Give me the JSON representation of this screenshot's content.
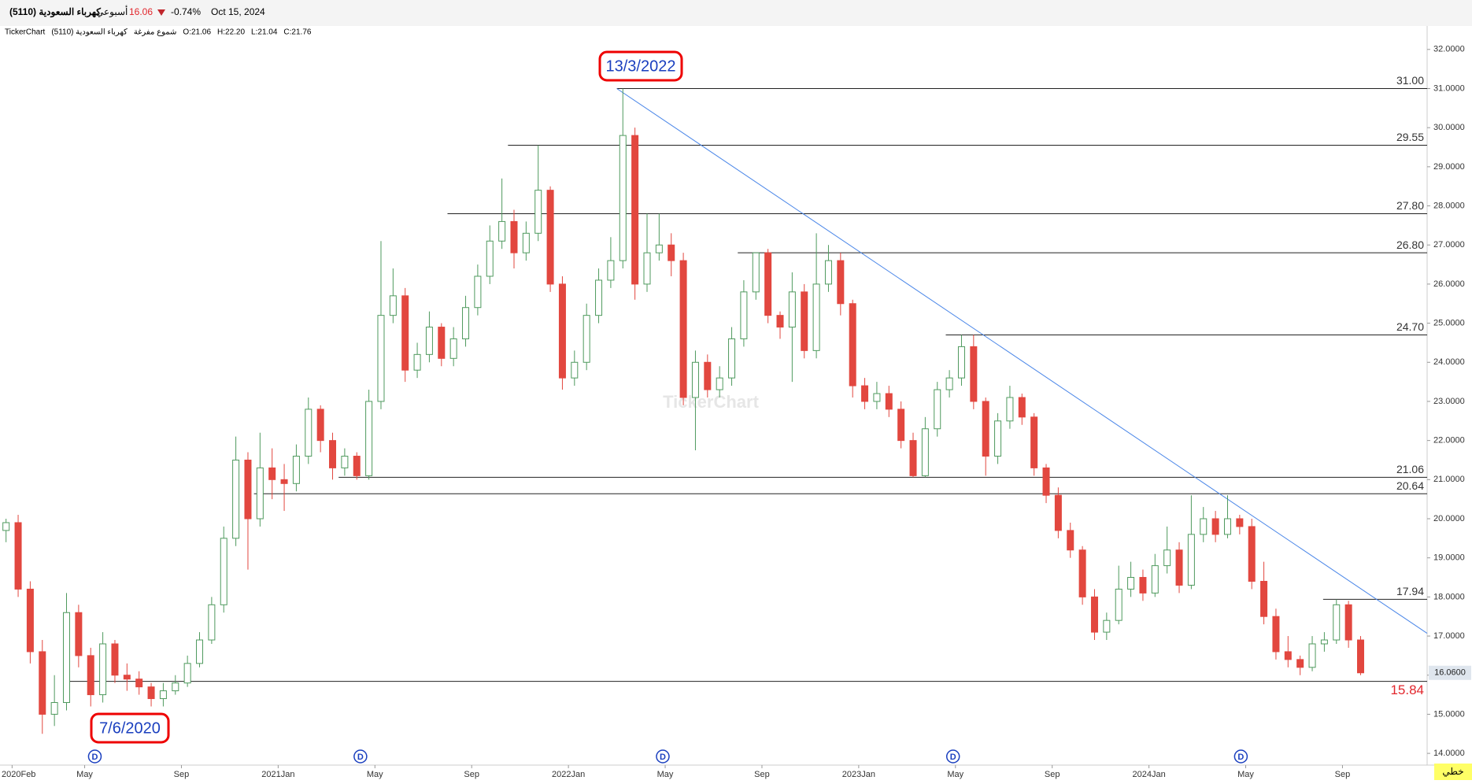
{
  "header": {
    "symbol": "كهرباء السعودية (5110)",
    "period": "أسبوعي",
    "price": "16.06",
    "change": "-0.74%",
    "date": "Oct 15, 2024",
    "info": [
      "TickerChart",
      "كهرباء السعودية (5110)",
      "شموع مفرغة",
      "O:21.06",
      "H:22.20",
      "L:21.04",
      "C:21.76"
    ],
    "watermark": "TickerChart",
    "chart_style": "خطي"
  },
  "chart_data": {
    "type": "candlestick",
    "xlim": [
      0.5,
      59.5
    ],
    "ylim": [
      13.7,
      32.6
    ],
    "xticks": [
      {
        "value": 1,
        "label": "2020Feb"
      },
      {
        "value": 4,
        "label": "May"
      },
      {
        "value": 8,
        "label": "Sep"
      },
      {
        "value": 12,
        "label": "2021Jan"
      },
      {
        "value": 16,
        "label": "May"
      },
      {
        "value": 20,
        "label": "Sep"
      },
      {
        "value": 24,
        "label": "2022Jan"
      },
      {
        "value": 28,
        "label": "May"
      },
      {
        "value": 32,
        "label": "Sep"
      },
      {
        "value": 36,
        "label": "2023Jan"
      },
      {
        "value": 40,
        "label": "May"
      },
      {
        "value": 44,
        "label": "Sep"
      },
      {
        "value": 48,
        "label": "2024Jan"
      },
      {
        "value": 52,
        "label": "May"
      },
      {
        "value": 56,
        "label": "Sep"
      }
    ],
    "yticks": [
      {
        "value": 14,
        "label": "14.0000"
      },
      {
        "value": 15,
        "label": "15.0000"
      },
      {
        "value": 16,
        "label": "16.0000"
      },
      {
        "value": 17,
        "label": "17.0000"
      },
      {
        "value": 18,
        "label": "18.0000"
      },
      {
        "value": 19,
        "label": "19.0000"
      },
      {
        "value": 20,
        "label": "20.0000"
      },
      {
        "value": 21,
        "label": "21.0000"
      },
      {
        "value": 22,
        "label": "22.0000"
      },
      {
        "value": 23,
        "label": "23.0000"
      },
      {
        "value": 24,
        "label": "24.0000"
      },
      {
        "value": 25,
        "label": "25.0000"
      },
      {
        "value": 26,
        "label": "26.0000"
      },
      {
        "value": 27,
        "label": "27.0000"
      },
      {
        "value": 28,
        "label": "28.0000"
      },
      {
        "value": 29,
        "label": "29.0000"
      },
      {
        "value": 30,
        "label": "30.0000"
      },
      {
        "value": 31,
        "label": "31.0000"
      },
      {
        "value": 32,
        "label": "32.0000"
      }
    ],
    "up_color": "#4f9a5e",
    "down_color": "#e2473f",
    "x": [
      0.75,
      1.25,
      1.75,
      2.25,
      2.75,
      3.25,
      3.75,
      4.25,
      4.75,
      5.25,
      5.75,
      6.25,
      6.75,
      7.25,
      7.75,
      8.25,
      8.75,
      9.25,
      9.75,
      10.25,
      10.75,
      11.25,
      11.75,
      12.25,
      12.75,
      13.25,
      13.75,
      14.25,
      14.75,
      15.25,
      15.75,
      16.25,
      16.75,
      17.25,
      17.75,
      18.25,
      18.75,
      19.25,
      19.75,
      20.25,
      20.75,
      21.25,
      21.75,
      22.25,
      22.75,
      23.25,
      23.75,
      24.25,
      24.75,
      25.25,
      25.75,
      26.25,
      26.75,
      27.25,
      27.75,
      28.25,
      28.75,
      29.25,
      29.75,
      30.25,
      30.75,
      31.25,
      31.75,
      32.25,
      32.75,
      33.25,
      33.75,
      34.25,
      34.75,
      35.25,
      35.75,
      36.25,
      36.75,
      37.25,
      37.75,
      38.25,
      38.75,
      39.25,
      39.75,
      40.25,
      40.75,
      41.25,
      41.75,
      42.25,
      42.75,
      43.25,
      43.75,
      44.25,
      44.75,
      45.25,
      45.75,
      46.25,
      46.75,
      47.25,
      47.75,
      48.25,
      48.75,
      49.25,
      49.75,
      50.25,
      50.75,
      51.25,
      51.75,
      52.25,
      52.75,
      53.25,
      53.75,
      54.25,
      54.75,
      55.25,
      55.75,
      56.25,
      56.75
    ],
    "ohlc": [
      [
        19.7,
        20.0,
        19.4,
        19.9
      ],
      [
        19.9,
        20.1,
        18.0,
        18.2
      ],
      [
        18.2,
        18.4,
        16.3,
        16.6
      ],
      [
        16.6,
        16.9,
        14.5,
        15.0
      ],
      [
        15.0,
        16.0,
        14.7,
        15.3
      ],
      [
        15.3,
        18.1,
        15.1,
        17.6
      ],
      [
        17.6,
        17.8,
        16.2,
        16.5
      ],
      [
        16.5,
        16.7,
        15.2,
        15.5
      ],
      [
        15.5,
        17.1,
        15.3,
        16.8
      ],
      [
        16.8,
        16.9,
        15.8,
        16.0
      ],
      [
        16.0,
        16.3,
        15.6,
        15.9
      ],
      [
        15.9,
        16.1,
        15.5,
        15.7
      ],
      [
        15.7,
        15.8,
        15.2,
        15.4
      ],
      [
        15.4,
        15.8,
        15.2,
        15.6
      ],
      [
        15.6,
        16.0,
        15.5,
        15.8
      ],
      [
        15.8,
        16.5,
        15.7,
        16.3
      ],
      [
        16.3,
        17.1,
        16.2,
        16.9
      ],
      [
        16.9,
        18.0,
        16.8,
        17.8
      ],
      [
        17.8,
        19.8,
        17.6,
        19.5
      ],
      [
        19.5,
        22.1,
        19.3,
        21.5
      ],
      [
        21.5,
        21.7,
        18.7,
        20.0
      ],
      [
        20.0,
        22.2,
        19.8,
        21.3
      ],
      [
        21.3,
        21.8,
        20.5,
        21.0
      ],
      [
        21.0,
        21.4,
        20.2,
        20.9
      ],
      [
        20.9,
        21.9,
        20.7,
        21.6
      ],
      [
        21.6,
        23.1,
        21.4,
        22.8
      ],
      [
        22.8,
        22.9,
        21.7,
        22.0
      ],
      [
        22.0,
        22.2,
        21.0,
        21.3
      ],
      [
        21.3,
        21.8,
        21.1,
        21.6
      ],
      [
        21.6,
        21.7,
        21.0,
        21.1
      ],
      [
        21.1,
        23.3,
        21.0,
        23.0
      ],
      [
        23.0,
        27.1,
        22.8,
        25.2
      ],
      [
        25.2,
        26.4,
        25.0,
        25.7
      ],
      [
        25.7,
        25.9,
        23.5,
        23.8
      ],
      [
        23.8,
        24.5,
        23.6,
        24.2
      ],
      [
        24.2,
        25.3,
        24.0,
        24.9
      ],
      [
        24.9,
        25.0,
        23.9,
        24.1
      ],
      [
        24.1,
        24.9,
        23.9,
        24.6
      ],
      [
        24.6,
        25.7,
        24.4,
        25.4
      ],
      [
        25.4,
        26.5,
        25.2,
        26.2
      ],
      [
        26.2,
        27.5,
        26.0,
        27.1
      ],
      [
        27.1,
        28.7,
        26.9,
        27.6
      ],
      [
        27.6,
        27.9,
        26.4,
        26.8
      ],
      [
        26.8,
        27.6,
        26.6,
        27.3
      ],
      [
        27.3,
        29.55,
        27.1,
        28.4
      ],
      [
        28.4,
        28.5,
        25.8,
        26.0
      ],
      [
        26.0,
        26.2,
        23.3,
        23.6
      ],
      [
        23.6,
        24.3,
        23.4,
        24.0
      ],
      [
        24.0,
        25.5,
        23.8,
        25.2
      ],
      [
        25.2,
        26.4,
        25.0,
        26.1
      ],
      [
        26.1,
        27.2,
        25.9,
        26.6
      ],
      [
        26.6,
        31.0,
        26.4,
        29.8
      ],
      [
        29.8,
        30.0,
        25.6,
        26.0
      ],
      [
        26.0,
        27.8,
        25.8,
        26.8
      ],
      [
        26.8,
        27.8,
        26.6,
        27.0
      ],
      [
        27.0,
        27.3,
        26.2,
        26.6
      ],
      [
        26.6,
        26.8,
        22.9,
        23.1
      ],
      [
        23.1,
        24.3,
        21.75,
        24.0
      ],
      [
        24.0,
        24.2,
        23.1,
        23.3
      ],
      [
        23.3,
        23.9,
        23.1,
        23.6
      ],
      [
        23.6,
        24.9,
        23.4,
        24.6
      ],
      [
        24.6,
        26.1,
        24.4,
        25.8
      ],
      [
        25.8,
        26.8,
        25.6,
        26.8
      ],
      [
        26.8,
        26.9,
        25.0,
        25.2
      ],
      [
        25.2,
        25.3,
        24.6,
        24.9
      ],
      [
        24.9,
        26.3,
        23.5,
        25.8
      ],
      [
        25.8,
        26.0,
        24.1,
        24.3
      ],
      [
        24.3,
        27.3,
        24.1,
        26.0
      ],
      [
        26.0,
        27.0,
        25.8,
        26.6
      ],
      [
        26.6,
        26.8,
        25.2,
        25.5
      ],
      [
        25.5,
        25.6,
        23.1,
        23.4
      ],
      [
        23.4,
        23.6,
        22.8,
        23.0
      ],
      [
        23.0,
        23.5,
        22.8,
        23.2
      ],
      [
        23.2,
        23.4,
        22.6,
        22.8
      ],
      [
        22.8,
        23.0,
        21.8,
        22.0
      ],
      [
        22.0,
        22.2,
        21.06,
        21.1
      ],
      [
        21.1,
        22.6,
        21.06,
        22.3
      ],
      [
        22.3,
        23.5,
        22.1,
        23.3
      ],
      [
        23.3,
        23.8,
        23.1,
        23.6
      ],
      [
        23.6,
        24.7,
        23.4,
        24.4
      ],
      [
        24.4,
        24.7,
        22.8,
        23.0
      ],
      [
        23.0,
        23.1,
        21.1,
        21.6
      ],
      [
        21.6,
        22.7,
        21.4,
        22.5
      ],
      [
        22.5,
        23.4,
        22.3,
        23.1
      ],
      [
        23.1,
        23.2,
        22.4,
        22.6
      ],
      [
        22.6,
        22.7,
        21.1,
        21.3
      ],
      [
        21.3,
        21.4,
        20.4,
        20.6
      ],
      [
        20.6,
        20.8,
        19.5,
        19.7
      ],
      [
        19.7,
        19.9,
        19.0,
        19.2
      ],
      [
        19.2,
        19.3,
        17.8,
        18.0
      ],
      [
        18.0,
        18.2,
        16.9,
        17.1
      ],
      [
        17.1,
        17.6,
        16.9,
        17.4
      ],
      [
        17.4,
        18.8,
        17.3,
        18.2
      ],
      [
        18.2,
        18.9,
        18.0,
        18.5
      ],
      [
        18.5,
        18.7,
        17.9,
        18.1
      ],
      [
        18.1,
        19.1,
        18.0,
        18.8
      ],
      [
        18.8,
        19.8,
        18.6,
        19.2
      ],
      [
        19.2,
        19.4,
        18.1,
        18.3
      ],
      [
        18.3,
        20.6,
        18.2,
        19.6
      ],
      [
        19.6,
        20.3,
        19.4,
        20.0
      ],
      [
        20.0,
        20.2,
        19.4,
        19.6
      ],
      [
        19.6,
        20.6,
        19.5,
        20.0
      ],
      [
        20.0,
        20.1,
        19.6,
        19.8
      ],
      [
        19.8,
        20.0,
        18.2,
        18.4
      ],
      [
        18.4,
        18.9,
        17.3,
        17.5
      ],
      [
        17.5,
        17.7,
        16.4,
        16.6
      ],
      [
        16.6,
        17.0,
        16.2,
        16.4
      ],
      [
        16.4,
        16.5,
        16.0,
        16.2
      ],
      [
        16.2,
        17.0,
        16.1,
        16.8
      ],
      [
        16.8,
        17.1,
        16.6,
        16.9
      ],
      [
        16.9,
        17.94,
        16.8,
        17.8
      ],
      [
        17.8,
        17.9,
        16.7,
        16.9
      ],
      [
        16.9,
        17.0,
        16.0,
        16.06
      ]
    ],
    "levels": [
      {
        "from": 26.0,
        "value": 31.0,
        "label": "31.00"
      },
      {
        "from": 21.5,
        "value": 29.55,
        "label": "29.55"
      },
      {
        "from": 19.0,
        "value": 27.8,
        "label": "27.80"
      },
      {
        "from": 31.0,
        "value": 26.8,
        "label": "26.80"
      },
      {
        "from": 39.6,
        "value": 24.7,
        "label": "24.70"
      },
      {
        "from": 14.5,
        "value": 21.06,
        "label": "21.06"
      },
      {
        "from": 11.0,
        "value": 20.64,
        "label": "20.64"
      },
      {
        "from": 55.2,
        "value": 17.94,
        "label": "17.94"
      },
      {
        "from": 3.2,
        "value": 15.84,
        "label": "15.84",
        "color": "#e2262c"
      }
    ],
    "trendline": {
      "x": [
        26.0,
        59.5
      ],
      "y": [
        31.0,
        17.07
      ],
      "color": "#4a86e8"
    },
    "annotations": [
      "13/3/2022",
      "7/6/2020"
    ],
    "dividends": {
      "x": [
        4.42,
        15.4,
        27.9,
        39.9,
        51.8
      ],
      "label": "D"
    },
    "last_price": {
      "value": 16.06,
      "label": "16.0600"
    }
  }
}
